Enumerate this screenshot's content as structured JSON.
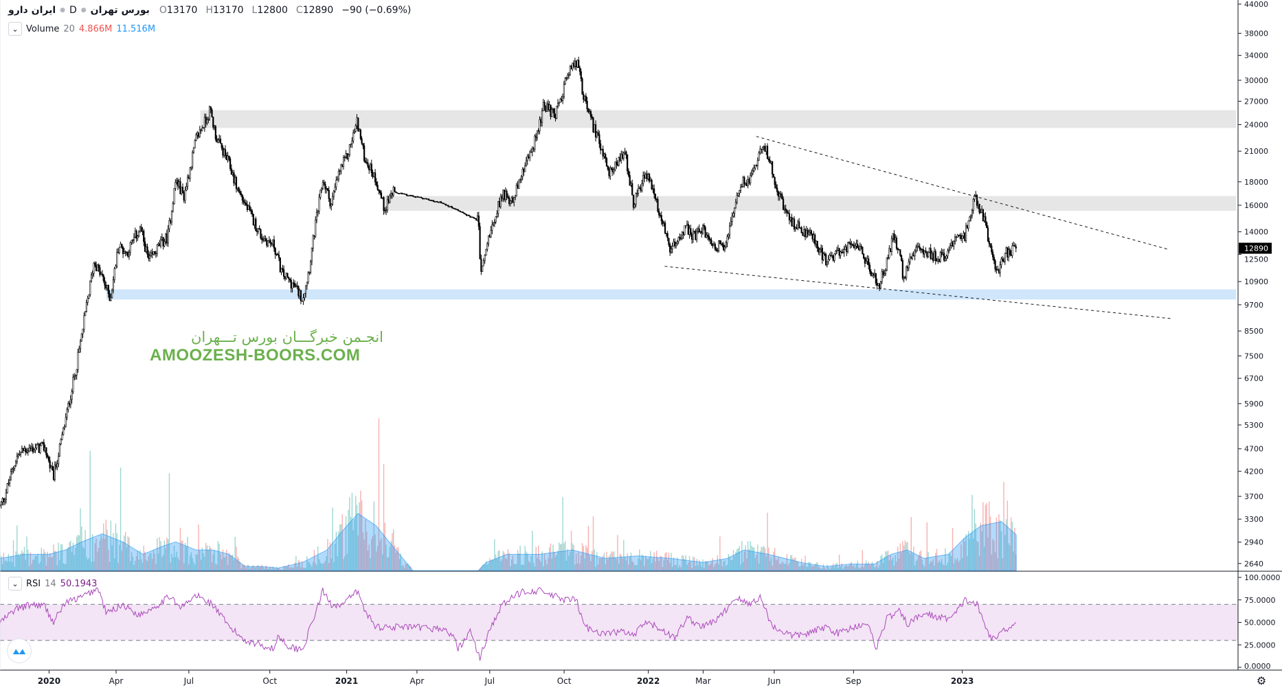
{
  "header": {
    "symbol": "ایران دارو",
    "interval": "D",
    "exchange": "بورس تهران",
    "open_label": "O",
    "open": "13170",
    "high_label": "H",
    "high": "13170",
    "low_label": "L",
    "low": "12800",
    "close_label": "C",
    "close": "12890",
    "change": "−90 (−0.69%)"
  },
  "volume_legend": {
    "name": "Volume",
    "length": "20",
    "value": "4.866M",
    "ma": "11.516M"
  },
  "rsi_legend": {
    "name": "RSI",
    "length": "14",
    "value": "50.1943"
  },
  "watermark": {
    "fa": "انجـمن خبرگـــان بورس تـــهران",
    "en": "AMOOZESH-BOORS.COM"
  },
  "colors": {
    "candle": "#000000",
    "zone_gray": "#e6e6e6",
    "zone_blue": "#cfe6fb",
    "vol_up": "#26a69a",
    "vol_down": "#ef5350",
    "vol_ma": "#2196f3",
    "rsi_line": "#ab47bc",
    "rsi_band": "#f3e5f5",
    "watermark": "#6ab04c"
  },
  "chart_data": {
    "type": "candlestick",
    "price_scale": "log",
    "price_range": [
      2640,
      44000
    ],
    "price_ticks": [
      "44000",
      "38000",
      "34000",
      "30000",
      "27000",
      "24000",
      "21000",
      "18000",
      "16000",
      "14000",
      "12500",
      "10900",
      "9700",
      "8500",
      "7500",
      "6700",
      "5900",
      "5300",
      "4700",
      "4200",
      "3700",
      "3300",
      "2940",
      "2640"
    ],
    "last_price": "12890",
    "time_epoch": "2019-11-02",
    "time_ticks": [
      {
        "day": 60,
        "label": "2020",
        "bold": true
      },
      {
        "day": 142,
        "label": "Apr"
      },
      {
        "day": 231,
        "label": "Jul"
      },
      {
        "day": 330,
        "label": "Oct"
      },
      {
        "day": 424,
        "label": "2021",
        "bold": true
      },
      {
        "day": 510,
        "label": "Apr"
      },
      {
        "day": 599,
        "label": "Jul"
      },
      {
        "day": 690,
        "label": "Oct"
      },
      {
        "day": 793,
        "label": "2022",
        "bold": true
      },
      {
        "day": 860,
        "label": "Mar"
      },
      {
        "day": 947,
        "label": "Jun"
      },
      {
        "day": 1044,
        "label": "Sep"
      },
      {
        "day": 1177,
        "label": "2023",
        "bold": true
      }
    ],
    "price_path": [
      [
        0,
        3520
      ],
      [
        5,
        3670
      ],
      [
        20,
        4500
      ],
      [
        30,
        4690
      ],
      [
        55,
        4730
      ],
      [
        65,
        4060
      ],
      [
        75,
        4890
      ],
      [
        85,
        6000
      ],
      [
        95,
        7370
      ],
      [
        105,
        9430
      ],
      [
        110,
        10660
      ],
      [
        115,
        12060
      ],
      [
        125,
        11110
      ],
      [
        135,
        10020
      ],
      [
        145,
        13090
      ],
      [
        155,
        12560
      ],
      [
        165,
        13640
      ],
      [
        172,
        14210
      ],
      [
        182,
        12060
      ],
      [
        195,
        13090
      ],
      [
        205,
        13640
      ],
      [
        215,
        18190
      ],
      [
        225,
        16760
      ],
      [
        240,
        22340
      ],
      [
        250,
        24260
      ],
      [
        257,
        25800
      ],
      [
        265,
        22340
      ],
      [
        280,
        19750
      ],
      [
        290,
        17460
      ],
      [
        300,
        16080
      ],
      [
        310,
        14810
      ],
      [
        320,
        13640
      ],
      [
        335,
        13090
      ],
      [
        345,
        11340
      ],
      [
        360,
        10660
      ],
      [
        370,
        10020
      ],
      [
        378,
        11580
      ],
      [
        385,
        14210
      ],
      [
        395,
        18190
      ],
      [
        405,
        16080
      ],
      [
        415,
        18950
      ],
      [
        425,
        20570
      ],
      [
        437,
        24450
      ],
      [
        445,
        20570
      ],
      [
        460,
        18190
      ],
      [
        470,
        15750
      ],
      [
        480,
        17100
      ],
      [
        540,
        16220
      ],
      [
        585,
        14810
      ],
      [
        588,
        11340
      ],
      [
        600,
        14210
      ],
      [
        615,
        17100
      ],
      [
        625,
        16220
      ],
      [
        640,
        18950
      ],
      [
        655,
        22340
      ],
      [
        665,
        26330
      ],
      [
        680,
        25280
      ],
      [
        695,
        31040
      ],
      [
        706,
        33010
      ],
      [
        712,
        28590
      ],
      [
        722,
        24750
      ],
      [
        735,
        21430
      ],
      [
        745,
        18950
      ],
      [
        755,
        19750
      ],
      [
        765,
        20570
      ],
      [
        775,
        16080
      ],
      [
        790,
        18950
      ],
      [
        800,
        16760
      ],
      [
        810,
        14810
      ],
      [
        820,
        12560
      ],
      [
        830,
        13640
      ],
      [
        840,
        14210
      ],
      [
        850,
        13640
      ],
      [
        860,
        14210
      ],
      [
        870,
        13090
      ],
      [
        885,
        13090
      ],
      [
        895,
        14810
      ],
      [
        905,
        17820
      ],
      [
        915,
        18190
      ],
      [
        925,
        19750
      ],
      [
        932,
        21880
      ],
      [
        940,
        20570
      ],
      [
        950,
        17460
      ],
      [
        965,
        14810
      ],
      [
        980,
        14210
      ],
      [
        995,
        13640
      ],
      [
        1010,
        12060
      ],
      [
        1025,
        12560
      ],
      [
        1040,
        13090
      ],
      [
        1055,
        12560
      ],
      [
        1065,
        11580
      ],
      [
        1075,
        10660
      ],
      [
        1085,
        12060
      ],
      [
        1092,
        13640
      ],
      [
        1100,
        12560
      ],
      [
        1105,
        11110
      ],
      [
        1115,
        12560
      ],
      [
        1130,
        12800
      ],
      [
        1145,
        12300
      ],
      [
        1160,
        12560
      ],
      [
        1170,
        13900
      ],
      [
        1180,
        13640
      ],
      [
        1185,
        15180
      ],
      [
        1193,
        16610
      ],
      [
        1205,
        14810
      ],
      [
        1210,
        13090
      ],
      [
        1220,
        11340
      ],
      [
        1230,
        12560
      ],
      [
        1243,
        12890
      ]
    ],
    "zones": [
      {
        "from_day": 245,
        "to_day": 1512,
        "price_low": 23600,
        "price_high": 25800,
        "color": "gray"
      },
      {
        "from_day": 470,
        "to_day": 1512,
        "price_low": 15560,
        "price_high": 16760,
        "color": "gray"
      },
      {
        "from_day": 130,
        "to_day": 1512,
        "price_low": 9960,
        "price_high": 10480,
        "color": "blue"
      }
    ],
    "trendlines": [
      {
        "from": [
          925,
          22620
        ],
        "to": [
          1428,
          12830
        ],
        "style": "dashed"
      },
      {
        "from": [
          813,
          11770
        ],
        "to": [
          1432,
          9050
        ],
        "style": "dashed"
      }
    ],
    "volume_unit": "M",
    "volume_ma_path": [
      [
        0,
        3.9
      ],
      [
        30,
        5.2
      ],
      [
        60,
        5.2
      ],
      [
        80,
        6.6
      ],
      [
        100,
        9.2
      ],
      [
        125,
        11.8
      ],
      [
        150,
        9.2
      ],
      [
        175,
        5.2
      ],
      [
        200,
        7.9
      ],
      [
        215,
        9.2
      ],
      [
        240,
        6.6
      ],
      [
        260,
        6.6
      ],
      [
        280,
        5.2
      ],
      [
        300,
        1.3
      ],
      [
        320,
        1.3
      ],
      [
        340,
        0.8
      ],
      [
        370,
        2.6
      ],
      [
        400,
        6.6
      ],
      [
        420,
        13.1
      ],
      [
        438,
        18.3
      ],
      [
        460,
        14.4
      ],
      [
        480,
        7.9
      ],
      [
        505,
        0
      ],
      [
        585,
        0
      ],
      [
        595,
        2.6
      ],
      [
        620,
        5.2
      ],
      [
        660,
        5.2
      ],
      [
        700,
        6.6
      ],
      [
        740,
        3.9
      ],
      [
        780,
        4.7
      ],
      [
        820,
        3.9
      ],
      [
        860,
        2.6
      ],
      [
        890,
        3.9
      ],
      [
        910,
        6.6
      ],
      [
        940,
        5.2
      ],
      [
        980,
        2.6
      ],
      [
        1010,
        1.3
      ],
      [
        1040,
        2.1
      ],
      [
        1070,
        2.1
      ],
      [
        1090,
        5.2
      ],
      [
        1110,
        6.6
      ],
      [
        1130,
        3.9
      ],
      [
        1160,
        5.2
      ],
      [
        1180,
        10.5
      ],
      [
        1200,
        14.4
      ],
      [
        1225,
        15.7
      ],
      [
        1243,
        11.5
      ]
    ],
    "rsi": {
      "ticks": [
        "100.0000",
        "75.0000",
        "50.0000",
        "25.0000",
        "0.0000"
      ],
      "upper": 70,
      "lower": 30,
      "path": [
        [
          0,
          50
        ],
        [
          20,
          65
        ],
        [
          40,
          70
        ],
        [
          55,
          68
        ],
        [
          65,
          50
        ],
        [
          80,
          72
        ],
        [
          100,
          78
        ],
        [
          120,
          88
        ],
        [
          130,
          60
        ],
        [
          150,
          70
        ],
        [
          170,
          58
        ],
        [
          190,
          68
        ],
        [
          210,
          80
        ],
        [
          220,
          65
        ],
        [
          240,
          80
        ],
        [
          260,
          70
        ],
        [
          280,
          45
        ],
        [
          300,
          30
        ],
        [
          320,
          25
        ],
        [
          335,
          20
        ],
        [
          340,
          35
        ],
        [
          355,
          22
        ],
        [
          370,
          20
        ],
        [
          380,
          45
        ],
        [
          395,
          85
        ],
        [
          405,
          70
        ],
        [
          420,
          70
        ],
        [
          437,
          85
        ],
        [
          445,
          65
        ],
        [
          460,
          45
        ],
        [
          480,
          45
        ],
        [
          540,
          43
        ],
        [
          555,
          35
        ],
        [
          560,
          20
        ],
        [
          575,
          40
        ],
        [
          587,
          10
        ],
        [
          600,
          45
        ],
        [
          615,
          70
        ],
        [
          640,
          85
        ],
        [
          660,
          85
        ],
        [
          675,
          80
        ],
        [
          690,
          75
        ],
        [
          705,
          75
        ],
        [
          715,
          45
        ],
        [
          740,
          37
        ],
        [
          760,
          40
        ],
        [
          775,
          35
        ],
        [
          790,
          50
        ],
        [
          810,
          42
        ],
        [
          825,
          32
        ],
        [
          840,
          55
        ],
        [
          860,
          45
        ],
        [
          880,
          55
        ],
        [
          900,
          78
        ],
        [
          915,
          70
        ],
        [
          930,
          78
        ],
        [
          945,
          45
        ],
        [
          970,
          35
        ],
        [
          990,
          38
        ],
        [
          1010,
          45
        ],
        [
          1025,
          38
        ],
        [
          1045,
          45
        ],
        [
          1060,
          50
        ],
        [
          1072,
          22
        ],
        [
          1085,
          55
        ],
        [
          1100,
          62
        ],
        [
          1110,
          48
        ],
        [
          1130,
          60
        ],
        [
          1150,
          55
        ],
        [
          1165,
          55
        ],
        [
          1180,
          75
        ],
        [
          1195,
          70
        ],
        [
          1205,
          45
        ],
        [
          1215,
          30
        ],
        [
          1225,
          40
        ],
        [
          1235,
          45
        ],
        [
          1243,
          50.19
        ]
      ]
    }
  }
}
